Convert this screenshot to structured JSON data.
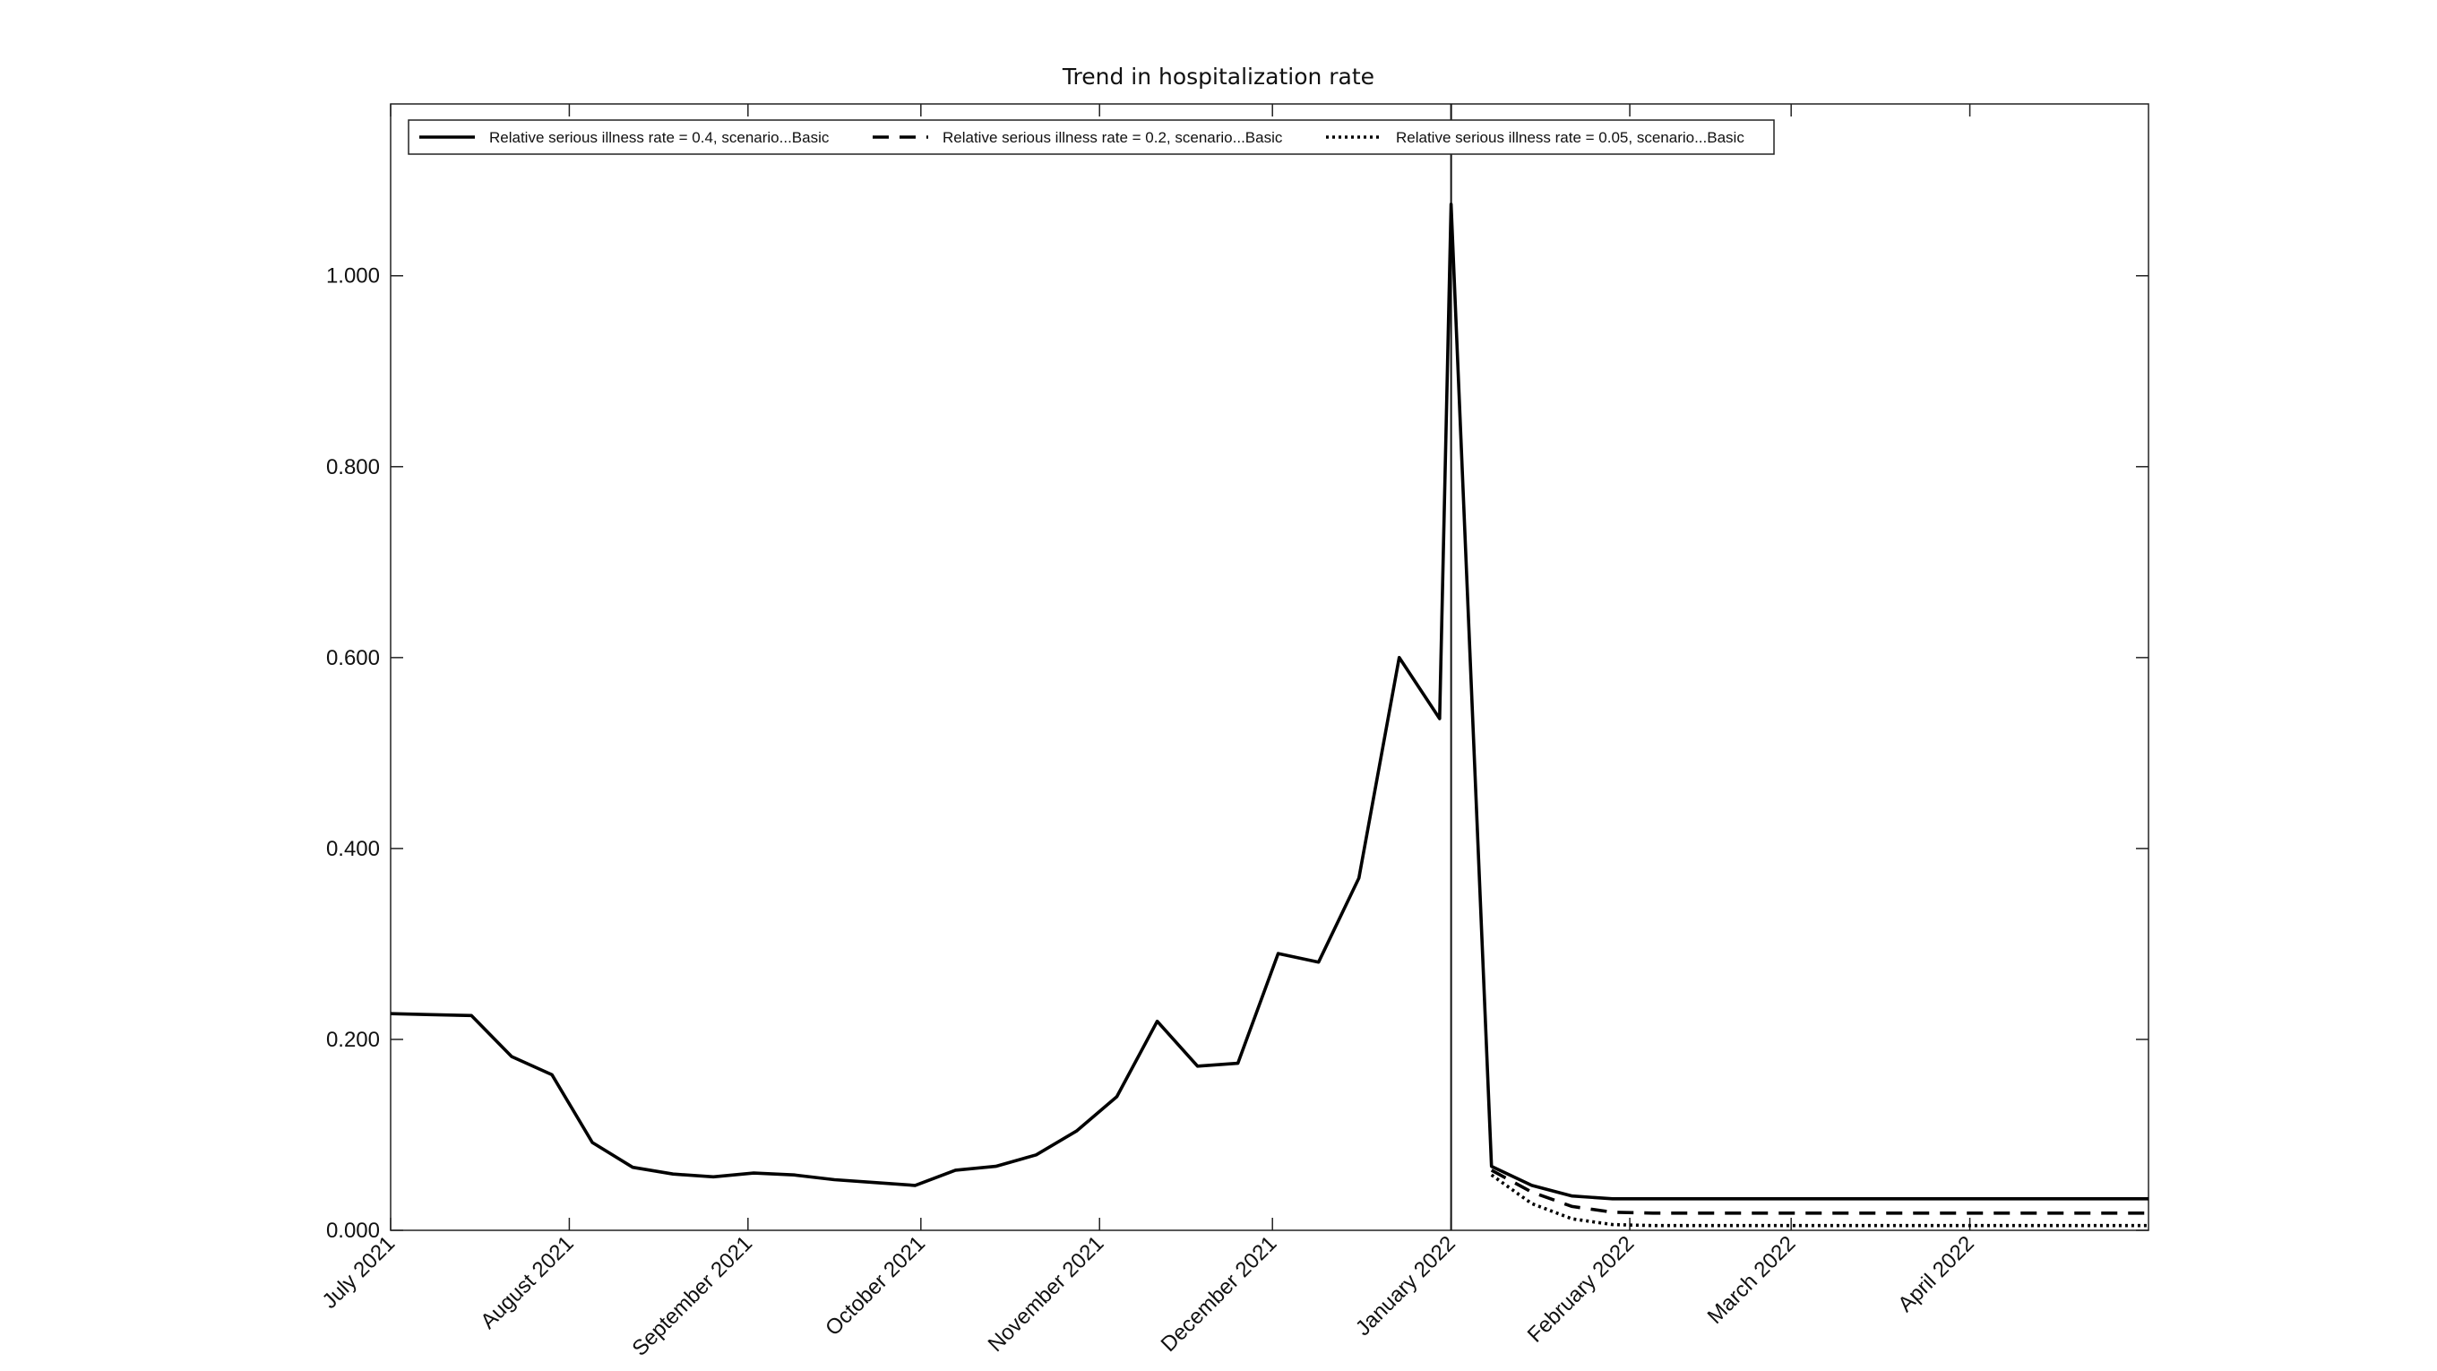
{
  "chart_data": {
    "type": "line",
    "title": "Trend in hospitalization rate",
    "xlabel": "",
    "ylabel": "",
    "ylim": [
      0,
      1.18
    ],
    "xlim": [
      "2021-07-01",
      "2022-05-02"
    ],
    "y_ticks": [
      0,
      0.2,
      0.4,
      0.6,
      0.8,
      1.0
    ],
    "y_tick_labels": [
      "0.000",
      "0.200",
      "0.400",
      "0.600",
      "0.800",
      "1.000"
    ],
    "x_ticks": [
      "2021-07-01",
      "2021-08-01",
      "2021-09-01",
      "2021-10-01",
      "2021-11-01",
      "2021-12-01",
      "2022-01-01",
      "2022-02-01",
      "2022-03-01",
      "2022-04-01"
    ],
    "x_tick_labels": [
      "July 2021",
      "August 2021",
      "September 2021",
      "October 2021",
      "November 2021",
      "December 2021",
      "January 2022",
      "February 2022",
      "March 2022",
      "April 2022"
    ],
    "vertical_line_x": "2022-01-01",
    "legend_position": "top-left",
    "grid": false,
    "series": [
      {
        "name": "Relative serious illness rate = 0.4, scenario...Basic",
        "style": "solid",
        "x": [
          "2021-07-01",
          "2021-07-08",
          "2021-07-15",
          "2021-07-22",
          "2021-07-29",
          "2021-08-05",
          "2021-08-12",
          "2021-08-19",
          "2021-08-26",
          "2021-09-02",
          "2021-09-09",
          "2021-09-16",
          "2021-09-23",
          "2021-09-30",
          "2021-10-07",
          "2021-10-14",
          "2021-10-21",
          "2021-10-28",
          "2021-11-04",
          "2021-11-11",
          "2021-11-18",
          "2021-11-25",
          "2021-12-02",
          "2021-12-09",
          "2021-12-16",
          "2021-12-23",
          "2021-12-30",
          "2022-01-01",
          "2022-01-08",
          "2022-01-15",
          "2022-01-22",
          "2022-01-29",
          "2022-02-05",
          "2022-02-12",
          "2022-02-19",
          "2022-02-26",
          "2022-03-05",
          "2022-03-12",
          "2022-03-19",
          "2022-03-26",
          "2022-04-02",
          "2022-04-09",
          "2022-04-16",
          "2022-04-23",
          "2022-05-02"
        ],
        "values": [
          0.227,
          0.226,
          0.225,
          0.182,
          0.163,
          0.092,
          0.066,
          0.059,
          0.056,
          0.06,
          0.058,
          0.053,
          0.05,
          0.047,
          0.063,
          0.067,
          0.079,
          0.104,
          0.14,
          0.219,
          0.172,
          0.175,
          0.29,
          0.281,
          0.369,
          0.6,
          0.536,
          1.075,
          0.067,
          0.047,
          0.036,
          0.033,
          0.033,
          0.033,
          0.033,
          0.033,
          0.033,
          0.033,
          0.033,
          0.033,
          0.033,
          0.033,
          0.033,
          0.033,
          0.033
        ]
      },
      {
        "name": "Relative serious illness rate = 0.2, scenario...Basic",
        "style": "dashed",
        "x": [
          "2022-01-08",
          "2022-01-15",
          "2022-01-22",
          "2022-01-29",
          "2022-02-05",
          "2022-02-12",
          "2022-02-19",
          "2022-02-26",
          "2022-03-05",
          "2022-03-12",
          "2022-03-19",
          "2022-03-26",
          "2022-04-02",
          "2022-04-09",
          "2022-04-16",
          "2022-04-23",
          "2022-05-02"
        ],
        "values": [
          0.063,
          0.04,
          0.025,
          0.019,
          0.018,
          0.018,
          0.018,
          0.018,
          0.018,
          0.018,
          0.018,
          0.018,
          0.018,
          0.018,
          0.018,
          0.018,
          0.018
        ]
      },
      {
        "name": "Relative serious illness rate = 0.05, scenario...Basic",
        "style": "dotted",
        "x": [
          "2022-01-08",
          "2022-01-15",
          "2022-01-22",
          "2022-01-29",
          "2022-02-05",
          "2022-02-12",
          "2022-02-19",
          "2022-02-26",
          "2022-03-05",
          "2022-03-12",
          "2022-03-19",
          "2022-03-26",
          "2022-04-02",
          "2022-04-09",
          "2022-04-16",
          "2022-04-23",
          "2022-05-02"
        ],
        "values": [
          0.058,
          0.028,
          0.012,
          0.006,
          0.005,
          0.005,
          0.005,
          0.005,
          0.005,
          0.005,
          0.005,
          0.005,
          0.005,
          0.005,
          0.005,
          0.005,
          0.005
        ]
      }
    ]
  }
}
